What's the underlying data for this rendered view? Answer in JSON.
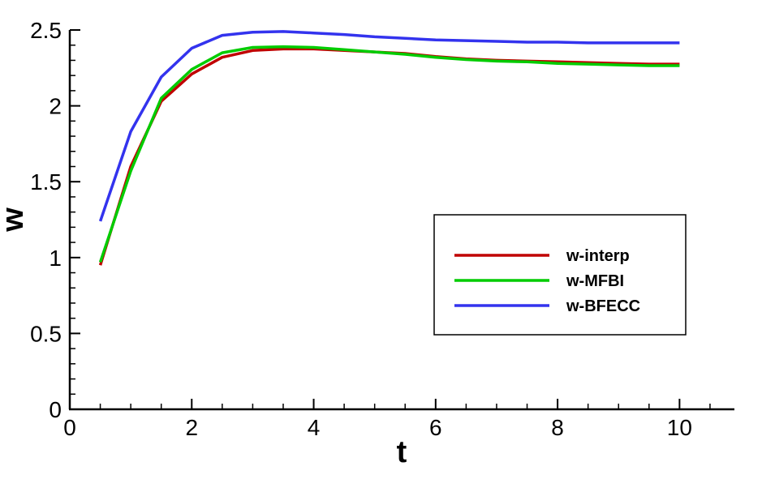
{
  "chart_data": {
    "type": "line",
    "xlabel": "t",
    "ylabel": "w",
    "xlim": [
      0,
      10.9
    ],
    "ylim": [
      0,
      2.5
    ],
    "x_ticks": [
      "0",
      "2",
      "4",
      "6",
      "8",
      "10"
    ],
    "y_ticks": [
      "0",
      "0.5",
      "1",
      "1.5",
      "2",
      "2.5"
    ],
    "x_tick_values": [
      0,
      2,
      4,
      6,
      8,
      10
    ],
    "y_tick_values": [
      0,
      0.5,
      1,
      1.5,
      2,
      2.5
    ],
    "x_minor_tick_values": [
      0.5,
      1,
      1.5,
      2.5,
      3,
      3.5,
      4.5,
      5,
      5.5,
      6.5,
      7,
      7.5,
      8.5,
      9,
      9.5,
      10.5
    ],
    "y_minor_tick_values": [
      0.1,
      0.2,
      0.3,
      0.4,
      0.6,
      0.7,
      0.8,
      0.9,
      1.1,
      1.2,
      1.3,
      1.4,
      1.6,
      1.7,
      1.8,
      1.9,
      2.1,
      2.2,
      2.3,
      2.4
    ],
    "grid": false,
    "legend_position": "lower-right",
    "x": [
      0.5,
      1,
      1.5,
      2,
      2.5,
      3,
      3.5,
      4,
      4.5,
      5,
      5.5,
      6,
      6.5,
      7,
      7.5,
      8,
      8.5,
      9,
      9.5,
      10
    ],
    "series": [
      {
        "name": "w-interp",
        "color": "#c00000",
        "values": [
          0.95,
          1.6,
          2.03,
          2.21,
          2.32,
          2.365,
          2.375,
          2.375,
          2.365,
          2.355,
          2.345,
          2.325,
          2.31,
          2.3,
          2.295,
          2.29,
          2.285,
          2.28,
          2.275,
          2.275
        ]
      },
      {
        "name": "w-MFBI",
        "color": "#00cc00",
        "values": [
          0.97,
          1.57,
          2.05,
          2.24,
          2.35,
          2.385,
          2.39,
          2.385,
          2.37,
          2.355,
          2.34,
          2.32,
          2.305,
          2.295,
          2.29,
          2.28,
          2.275,
          2.27,
          2.265,
          2.265
        ]
      },
      {
        "name": "w-BFECC",
        "color": "#3333ee",
        "values": [
          1.24,
          1.83,
          2.19,
          2.38,
          2.465,
          2.485,
          2.49,
          2.48,
          2.47,
          2.455,
          2.445,
          2.435,
          2.43,
          2.425,
          2.42,
          2.42,
          2.415,
          2.415,
          2.415,
          2.415
        ]
      }
    ]
  }
}
